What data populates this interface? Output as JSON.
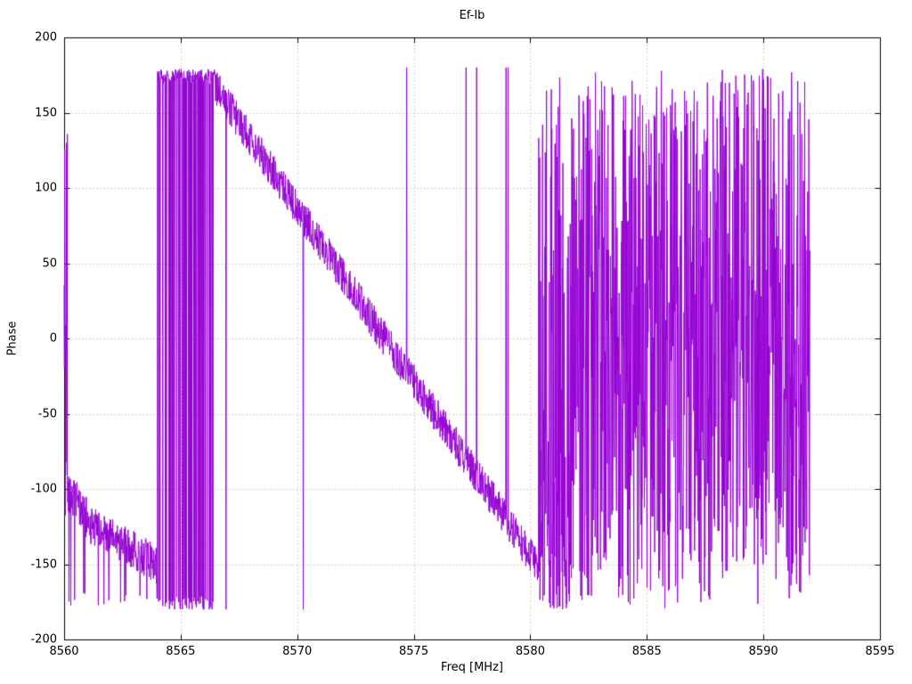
{
  "chart_data": {
    "type": "line",
    "title": "Ef-Ib",
    "xlabel": "Freq [MHz]",
    "ylabel": "Phase",
    "xlim": [
      8560,
      8595
    ],
    "ylim": [
      -200,
      200
    ],
    "xticks": [
      8560,
      8565,
      8570,
      8575,
      8580,
      8585,
      8590,
      8595
    ],
    "yticks": [
      -200,
      -150,
      -100,
      -50,
      0,
      50,
      100,
      150,
      200
    ],
    "grid": true,
    "legend": "none",
    "line_color": "#9400d3",
    "wrap_range": [
      -180,
      180
    ],
    "series": [
      {
        "seed": 42,
        "segments": [
          {
            "kind": "uniform",
            "x0": 8560.0,
            "x1": 8560.14,
            "n": 12,
            "min": -180,
            "max": 178,
            "bias": 1
          },
          {
            "kind": "noise_line",
            "x0": 8560.14,
            "x1": 8561.2,
            "n": 80,
            "y0": -100,
            "y1": -125,
            "amp": 14,
            "spike_prob": 0.05,
            "spike_to": -178,
            "spike_jitter": 12
          },
          {
            "kind": "noise_line",
            "x0": 8561.2,
            "x1": 8564.0,
            "n": 200,
            "y0": -125,
            "y1": -150,
            "amp": 13,
            "spike_prob": 0.04,
            "spike_to": -178,
            "spike_jitter": 10
          },
          {
            "kind": "square",
            "x0": 8564.0,
            "x1": 8566.45,
            "n": 190,
            "top": 174,
            "bottom": -176,
            "bottom_prob": 0.32,
            "jitter": 5
          },
          {
            "kind": "ramp",
            "x0": 8566.45,
            "x1": 8580.35,
            "n": 950,
            "y0": 168,
            "y1": -152,
            "amp": 12,
            "wrap_prob": 0.012
          },
          {
            "kind": "uniform",
            "x0": 8580.35,
            "x1": 8581.7,
            "n": 130,
            "min": -180,
            "max": 175,
            "bias": 2.0
          },
          {
            "kind": "uniform",
            "x0": 8581.7,
            "x1": 8592.0,
            "n": 820,
            "min": -180,
            "max": 180,
            "bias": 1
          }
        ]
      }
    ]
  }
}
